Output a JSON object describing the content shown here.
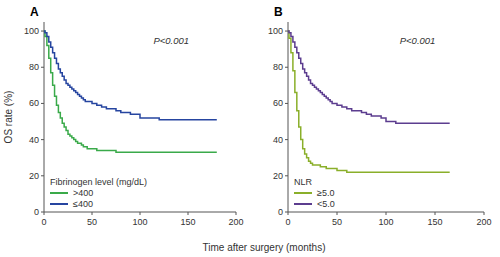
{
  "chart_data": [
    {
      "type": "step",
      "title": "A",
      "annotation": "P<0.001",
      "ylabel": "OS rate (%)",
      "xlabel": "Time after surgery (months)",
      "xlim": [
        0,
        200
      ],
      "ylim": [
        0,
        105
      ],
      "xticks": [
        0,
        50,
        100,
        150,
        200
      ],
      "yticks": [
        0,
        20,
        40,
        60,
        80,
        100
      ],
      "legend": "lower left",
      "legend_title": "Fibrinogen level (mg/dL)",
      "series": [
        {
          "name": ">400",
          "color": "#3aaa4a",
          "x": [
            0,
            1,
            3,
            5,
            7,
            9,
            11,
            13,
            15,
            17,
            19,
            21,
            23,
            25,
            27,
            29,
            31,
            33,
            35,
            37,
            39,
            41,
            43,
            45,
            50,
            55,
            60,
            65,
            70,
            75,
            80,
            85,
            90,
            95,
            100,
            105,
            110,
            115,
            120,
            125,
            130,
            135,
            140,
            145,
            150,
            155,
            160,
            165,
            170,
            175,
            180
          ],
          "values": [
            100,
            97,
            92,
            85,
            77,
            70,
            64,
            59,
            55,
            52,
            49,
            47,
            45,
            43,
            42,
            41,
            40,
            39,
            38,
            38,
            37,
            36,
            36,
            35,
            35,
            34,
            34,
            34,
            34,
            33,
            33,
            33,
            33,
            33,
            33,
            33,
            33,
            33,
            33,
            33,
            33,
            33,
            33,
            33,
            33,
            33,
            33,
            33,
            33,
            33,
            33
          ]
        },
        {
          "name": "≤400",
          "color": "#2645a0",
          "x": [
            0,
            1,
            3,
            5,
            7,
            9,
            11,
            13,
            15,
            17,
            19,
            21,
            23,
            25,
            27,
            29,
            31,
            33,
            35,
            37,
            39,
            41,
            43,
            45,
            50,
            55,
            60,
            65,
            70,
            75,
            80,
            85,
            90,
            95,
            100,
            105,
            110,
            115,
            120,
            125,
            130,
            135,
            140,
            145,
            150,
            155,
            160,
            165,
            170,
            175,
            180
          ],
          "values": [
            100,
            99,
            97,
            94,
            91,
            88,
            85,
            82,
            79,
            77,
            75,
            73,
            71,
            70,
            69,
            68,
            67,
            66,
            65,
            64,
            63,
            62,
            61,
            61,
            60,
            59,
            58,
            57,
            57,
            56,
            55,
            55,
            54,
            54,
            52,
            52,
            52,
            52,
            51,
            51,
            51,
            51,
            51,
            51,
            51,
            51,
            51,
            51,
            51,
            51,
            51
          ]
        }
      ]
    },
    {
      "type": "step",
      "title": "B",
      "annotation": "P<0.001",
      "xlim": [
        0,
        200
      ],
      "ylim": [
        0,
        105
      ],
      "xticks": [
        0,
        50,
        100,
        150,
        200
      ],
      "yticks": [
        0,
        20,
        40,
        60,
        80,
        100
      ],
      "legend": "lower left",
      "legend_title": "NLR",
      "series": [
        {
          "name": "≥5.0",
          "color": "#8aaf2a",
          "x": [
            0,
            1,
            3,
            5,
            7,
            9,
            11,
            13,
            15,
            17,
            19,
            21,
            23,
            25,
            27,
            29,
            31,
            33,
            35,
            37,
            39,
            41,
            43,
            45,
            50,
            55,
            60,
            65,
            70,
            75,
            80,
            85,
            90,
            95,
            100,
            105,
            110,
            115,
            120,
            125,
            130,
            135,
            140,
            145,
            150,
            155,
            160,
            165
          ],
          "values": [
            100,
            96,
            88,
            78,
            66,
            56,
            47,
            40,
            35,
            32,
            30,
            28,
            27,
            26,
            26,
            26,
            26,
            25,
            25,
            25,
            24,
            24,
            24,
            24,
            23,
            23,
            22,
            22,
            22,
            22,
            22,
            22,
            22,
            22,
            22,
            22,
            22,
            22,
            22,
            22,
            22,
            22,
            22,
            22,
            22,
            22,
            22,
            22
          ]
        },
        {
          "name": "<5.0",
          "color": "#5c3d8f",
          "x": [
            0,
            1,
            3,
            5,
            7,
            9,
            11,
            13,
            15,
            17,
            19,
            21,
            23,
            25,
            27,
            29,
            31,
            33,
            35,
            37,
            39,
            41,
            43,
            45,
            50,
            55,
            60,
            65,
            70,
            75,
            80,
            85,
            90,
            95,
            100,
            105,
            110,
            115,
            120,
            125,
            130,
            135,
            140,
            145,
            150,
            155,
            160,
            165
          ],
          "values": [
            100,
            99,
            97,
            94,
            91,
            88,
            85,
            82,
            79,
            77,
            75,
            73,
            71,
            70,
            69,
            68,
            67,
            66,
            65,
            64,
            63,
            62,
            61,
            60,
            59,
            58,
            57,
            56,
            56,
            55,
            54,
            53,
            53,
            52,
            50,
            50,
            49,
            49,
            49,
            49,
            49,
            49,
            49,
            49,
            49,
            49,
            49,
            49
          ]
        }
      ]
    }
  ]
}
